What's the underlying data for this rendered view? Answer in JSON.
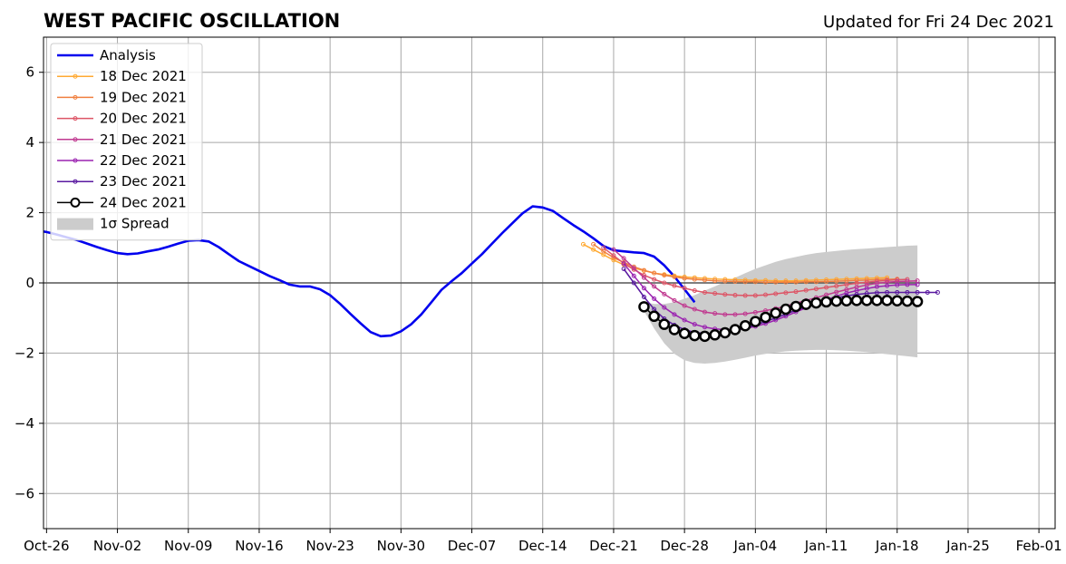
{
  "chart_data": {
    "type": "line",
    "title": "WEST PACIFIC OSCILLATION",
    "subtitle": "Updated for Fri 24 Dec 2021",
    "xlabel": "",
    "ylabel": "",
    "xlim": [
      -0.3,
      99.6
    ],
    "ylim": [
      -7,
      7
    ],
    "grid": true,
    "legend_position": "top-left",
    "x_ticks": [
      {
        "day": 0,
        "label": "Oct-26"
      },
      {
        "day": 7,
        "label": "Nov-02"
      },
      {
        "day": 14,
        "label": "Nov-09"
      },
      {
        "day": 21,
        "label": "Nov-16"
      },
      {
        "day": 28,
        "label": "Nov-23"
      },
      {
        "day": 35,
        "label": "Nov-30"
      },
      {
        "day": 42,
        "label": "Dec-07"
      },
      {
        "day": 49,
        "label": "Dec-14"
      },
      {
        "day": 56,
        "label": "Dec-21"
      },
      {
        "day": 63,
        "label": "Dec-28"
      },
      {
        "day": 70,
        "label": "Jan-04"
      },
      {
        "day": 77,
        "label": "Jan-11"
      },
      {
        "day": 84,
        "label": "Jan-18"
      },
      {
        "day": 91,
        "label": "Jan-25"
      },
      {
        "day": 98,
        "label": "Feb-01"
      }
    ],
    "y_ticks": [
      {
        "value": 6,
        "label": "6"
      },
      {
        "value": 4,
        "label": "4"
      },
      {
        "value": 2,
        "label": "2"
      },
      {
        "value": 0,
        "label": "0"
      },
      {
        "value": -2,
        "label": "−2"
      },
      {
        "value": -4,
        "label": "−4"
      },
      {
        "value": -6,
        "label": "−6"
      }
    ],
    "series": [
      {
        "name": "Analysis",
        "color": "#0000ee",
        "style": "analysis",
        "start_day": -1,
        "values": [
          1.5,
          1.45,
          1.38,
          1.3,
          1.22,
          1.12,
          1.02,
          0.93,
          0.85,
          0.82,
          0.84,
          0.9,
          0.95,
          1.03,
          1.12,
          1.2,
          1.22,
          1.18,
          1.02,
          0.82,
          0.62,
          0.48,
          0.34,
          0.2,
          0.08,
          -0.05,
          -0.1,
          -0.1,
          -0.18,
          -0.35,
          -0.6,
          -0.88,
          -1.15,
          -1.4,
          -1.52,
          -1.5,
          -1.38,
          -1.18,
          -0.9,
          -0.55,
          -0.2,
          0.05,
          0.28,
          0.55,
          0.82,
          1.12,
          1.42,
          1.7,
          1.98,
          2.18,
          2.15,
          2.05,
          1.85,
          1.65,
          1.47,
          1.27,
          1.05,
          0.93,
          0.9,
          0.87,
          0.85,
          0.75,
          0.5,
          0.18,
          -0.18,
          -0.55
        ]
      },
      {
        "name": "18 Dec 2021",
        "color": "#ffaa33",
        "style": "forecast",
        "start_day": 53,
        "values": [
          1.1,
          0.95,
          0.8,
          0.65,
          0.52,
          0.42,
          0.35,
          0.28,
          0.24,
          0.2,
          0.17,
          0.15,
          0.13,
          0.11,
          0.1,
          0.09,
          0.08,
          0.07,
          0.07,
          0.06,
          0.06,
          0.06,
          0.07,
          0.08,
          0.09,
          0.1,
          0.11,
          0.12,
          0.13,
          0.14,
          0.15
        ]
      },
      {
        "name": "19 Dec 2021",
        "color": "#f08040",
        "style": "forecast",
        "start_day": 54,
        "values": [
          1.1,
          0.9,
          0.72,
          0.58,
          0.46,
          0.36,
          0.28,
          0.22,
          0.17,
          0.13,
          0.1,
          0.08,
          0.06,
          0.05,
          0.04,
          0.03,
          0.03,
          0.02,
          0.02,
          0.02,
          0.02,
          0.03,
          0.03,
          0.04,
          0.05,
          0.06,
          0.07,
          0.08,
          0.09,
          0.1,
          0.11
        ]
      },
      {
        "name": "20 Dec 2021",
        "color": "#dd5566",
        "style": "forecast",
        "start_day": 55,
        "values": [
          1.0,
          0.78,
          0.56,
          0.38,
          0.22,
          0.1,
          0.0,
          -0.08,
          -0.15,
          -0.22,
          -0.27,
          -0.3,
          -0.33,
          -0.35,
          -0.36,
          -0.36,
          -0.34,
          -0.31,
          -0.28,
          -0.25,
          -0.21,
          -0.17,
          -0.13,
          -0.09,
          -0.05,
          -0.01,
          0.02,
          0.05,
          0.07,
          0.09,
          0.1
        ]
      },
      {
        "name": "21 Dec 2021",
        "color": "#c03a90",
        "style": "forecast",
        "start_day": 56,
        "values": [
          0.95,
          0.7,
          0.42,
          0.15,
          -0.1,
          -0.32,
          -0.5,
          -0.65,
          -0.75,
          -0.83,
          -0.87,
          -0.9,
          -0.9,
          -0.88,
          -0.84,
          -0.79,
          -0.73,
          -0.66,
          -0.58,
          -0.5,
          -0.42,
          -0.34,
          -0.26,
          -0.19,
          -0.12,
          -0.06,
          -0.01,
          0.02,
          0.04,
          0.05,
          0.06
        ]
      },
      {
        "name": "22 Dec 2021",
        "color": "#9a22b0",
        "style": "forecast",
        "start_day": 57,
        "values": [
          0.55,
          0.2,
          -0.15,
          -0.45,
          -0.7,
          -0.9,
          -1.06,
          -1.18,
          -1.26,
          -1.31,
          -1.33,
          -1.33,
          -1.3,
          -1.24,
          -1.16,
          -1.06,
          -0.95,
          -0.83,
          -0.71,
          -0.59,
          -0.48,
          -0.38,
          -0.29,
          -0.22,
          -0.16,
          -0.11,
          -0.08,
          -0.06,
          -0.05,
          -0.05
        ]
      },
      {
        "name": "23 Dec 2021",
        "color": "#5a1aa0",
        "style": "forecast",
        "start_day": 57,
        "values": [
          0.4,
          0.0,
          -0.4,
          -0.75,
          -1.02,
          -1.2,
          -1.33,
          -1.41,
          -1.44,
          -1.44,
          -1.41,
          -1.36,
          -1.29,
          -1.2,
          -1.1,
          -1.0,
          -0.89,
          -0.78,
          -0.68,
          -0.58,
          -0.5,
          -0.43,
          -0.37,
          -0.33,
          -0.3,
          -0.28,
          -0.27,
          -0.27,
          -0.27,
          -0.27,
          -0.27,
          -0.27
        ]
      },
      {
        "name": "24 Dec 2021",
        "color": "#000000",
        "style": "latest",
        "start_day": 59,
        "values": [
          -0.68,
          -0.95,
          -1.18,
          -1.33,
          -1.44,
          -1.5,
          -1.52,
          -1.48,
          -1.42,
          -1.33,
          -1.22,
          -1.1,
          -0.98,
          -0.86,
          -0.75,
          -0.67,
          -0.61,
          -0.57,
          -0.54,
          -0.52,
          -0.51,
          -0.5,
          -0.5,
          -0.5,
          -0.5,
          -0.51,
          -0.52,
          -0.53
        ]
      }
    ],
    "spread": {
      "name": "1σ Spread",
      "color": "#cccccc",
      "start_day": 59,
      "upper": [
        -0.55,
        -0.6,
        -0.6,
        -0.55,
        -0.45,
        -0.35,
        -0.22,
        -0.1,
        0.03,
        0.15,
        0.28,
        0.4,
        0.5,
        0.6,
        0.68,
        0.74,
        0.8,
        0.85,
        0.88,
        0.91,
        0.94,
        0.96,
        0.98,
        1.0,
        1.02,
        1.04,
        1.06,
        1.07
      ],
      "lower": [
        -0.8,
        -1.3,
        -1.72,
        -2.02,
        -2.2,
        -2.28,
        -2.3,
        -2.28,
        -2.24,
        -2.19,
        -2.13,
        -2.07,
        -2.02,
        -1.98,
        -1.95,
        -1.93,
        -1.92,
        -1.91,
        -1.91,
        -1.92,
        -1.93,
        -1.95,
        -1.97,
        -2.0,
        -2.03,
        -2.06,
        -2.09,
        -2.12
      ]
    }
  }
}
